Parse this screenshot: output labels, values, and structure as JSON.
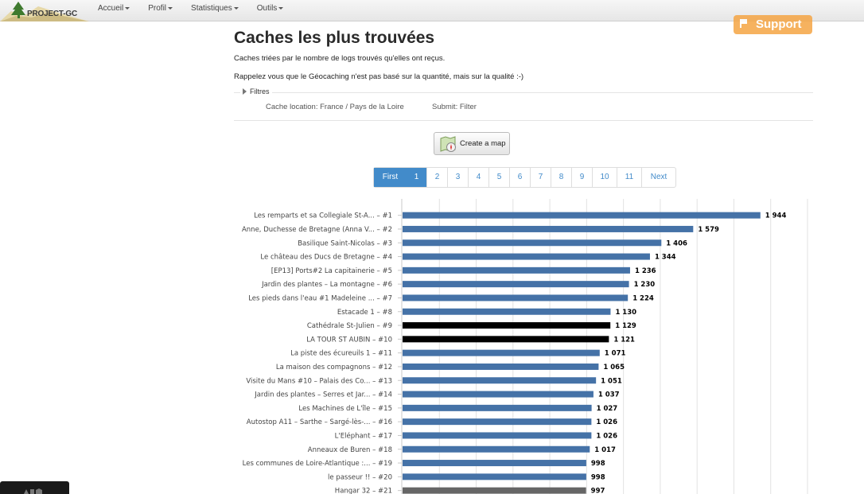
{
  "app": {
    "logo_text": "PROJECT-GC"
  },
  "nav": {
    "items": [
      "Accueil",
      "Profil",
      "Statistiques",
      "Outils"
    ]
  },
  "support": {
    "label": "Support"
  },
  "page": {
    "title": "Caches les plus trouvées",
    "subtitle": "Caches triées par le nombre de logs trouvés qu'elles ont reçus.",
    "reminder": "Rappelez vous que le Géocaching n'est pas basé sur la quantité, mais sur la qualité :-)"
  },
  "filters": {
    "legend": "Filtres",
    "location": "Cache location: France / Pays de la Loire",
    "submit": "Submit: Filter"
  },
  "map_button": {
    "label": "Create a map"
  },
  "pagination": {
    "first": "First",
    "pages": [
      "1",
      "2",
      "3",
      "4",
      "5",
      "6",
      "7",
      "8",
      "9",
      "10",
      "11"
    ],
    "active": "1",
    "next": "Next"
  },
  "colors": {
    "bar": "#4572a7",
    "bar_highlight": "#000000",
    "bar_grey": "#666666",
    "accent": "#428bca",
    "support": "#f5a544"
  },
  "chart_data": {
    "type": "bar",
    "orientation": "horizontal",
    "categories": [
      "Les remparts et sa Collegiale St-A... – #1",
      "Anne, Duchesse de Bretagne (Anna V... – #2",
      "Basilique Saint-Nicolas – #3",
      "Le château des Ducs de Bretagne – #4",
      "[EP13] Ports#2 La capitainerie – #5",
      "Jardin des plantes – La montagne – #6",
      "Les pieds dans l'eau #1 Madeleine ... – #7",
      "Estacade 1 – #8",
      "Cathédrale St-Julien – #9",
      "LA TOUR ST AUBIN – #10",
      "La piste des écureuils 1 – #11",
      "La maison des compagnons – #12",
      "Visite du Mans #10 – Palais des Co... – #13",
      "Jardin des plantes – Serres et Jar... – #14",
      "Les Machines de L'île – #15",
      "Autostop A11 – Sarthe – Sargé-lès-... – #16",
      "L'Eléphant – #17",
      "Anneaux de Buren – #18",
      "Les communes de Loire-Atlantique :... – #19",
      "le passeur !! – #20",
      "Hangar 32 – #21"
    ],
    "values": [
      1944,
      1579,
      1406,
      1344,
      1236,
      1230,
      1224,
      1130,
      1129,
      1121,
      1071,
      1065,
      1051,
      1037,
      1027,
      1026,
      1026,
      1017,
      998,
      998,
      997
    ],
    "value_labels": [
      "1 944",
      "1 579",
      "1 406",
      "1 344",
      "1 236",
      "1 230",
      "1 224",
      "1 130",
      "1 129",
      "1 121",
      "1 071",
      "1 065",
      "1 051",
      "1 037",
      "1 027",
      "1 026",
      "1 026",
      "1 017",
      "998",
      "998",
      "997"
    ],
    "bar_colors": [
      "#4572a7",
      "#4572a7",
      "#4572a7",
      "#4572a7",
      "#4572a7",
      "#4572a7",
      "#4572a7",
      "#4572a7",
      "#000000",
      "#000000",
      "#4572a7",
      "#4572a7",
      "#4572a7",
      "#4572a7",
      "#4572a7",
      "#4572a7",
      "#4572a7",
      "#4572a7",
      "#4572a7",
      "#4572a7",
      "#666666"
    ],
    "xlim": [
      0,
      2200
    ],
    "grid": true
  }
}
